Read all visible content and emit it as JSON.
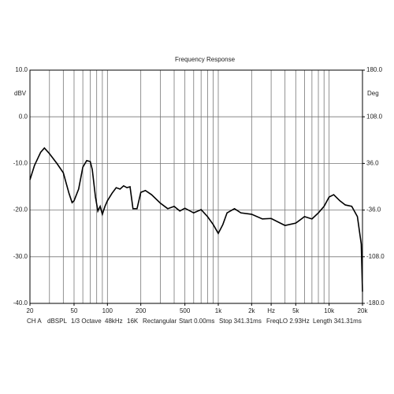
{
  "chart_data": {
    "type": "line",
    "title": "Frequency Response",
    "y_label": "dBV",
    "y2_label": "Deg",
    "log_x": true,
    "grid": true,
    "xlim": [
      20,
      20000
    ],
    "xticks": [
      20,
      50,
      100,
      200,
      500,
      {
        "value": 1000,
        "label": "1k"
      },
      {
        "value": 2000,
        "label": "2k"
      },
      {
        "value": 3000,
        "label": "Hz"
      },
      {
        "value": 5000,
        "label": "5k"
      },
      {
        "value": 10000,
        "label": "10k"
      },
      {
        "value": 20000,
        "label": "20k"
      }
    ],
    "x_gridlines": [
      30,
      40,
      50,
      60,
      70,
      80,
      90,
      100,
      200,
      300,
      400,
      500,
      600,
      700,
      800,
      900,
      1000,
      2000,
      3000,
      4000,
      5000,
      6000,
      7000,
      8000,
      9000,
      10000
    ],
    "ylim": [
      -40,
      10
    ],
    "yticks": [
      {
        "value": 10,
        "label": "10.0"
      },
      {
        "value": 0,
        "label": "0.0"
      },
      {
        "value": -10,
        "label": "-10.0"
      },
      {
        "value": -20,
        "label": "-20.0"
      },
      {
        "value": -30,
        "label": "-30.0"
      },
      {
        "value": -40,
        "label": "-40.0"
      }
    ],
    "y2lim": [
      -180,
      180
    ],
    "y2ticks": [
      {
        "value": 180,
        "label": "180.0"
      },
      {
        "value": 108,
        "label": "108.0"
      },
      {
        "value": 36,
        "label": "36.0"
      },
      {
        "value": -36,
        "label": "-36.0"
      },
      {
        "value": -108,
        "label": "-108.0"
      },
      {
        "value": -180,
        "label": "-180.0"
      }
    ],
    "x": [
      20,
      22,
      25,
      27,
      30,
      35,
      40,
      45,
      48,
      50,
      55,
      60,
      65,
      70,
      73,
      78,
      82,
      86,
      90,
      95,
      100,
      110,
      120,
      130,
      140,
      150,
      160,
      170,
      185,
      200,
      220,
      250,
      300,
      350,
      400,
      450,
      500,
      600,
      700,
      800,
      900,
      1000,
      1100,
      1200,
      1400,
      1600,
      2000,
      2500,
      3000,
      4000,
      5000,
      6000,
      7000,
      8000,
      9000,
      10000,
      11000,
      12500,
      14000,
      16000,
      18000,
      19500,
      20000
    ],
    "series": [
      {
        "color": "#000000",
        "values": [
          -13.5,
          -10.4,
          -7.6,
          -6.7,
          -7.9,
          -10,
          -12,
          -16.4,
          -18.4,
          -18,
          -15.5,
          -10.8,
          -9.4,
          -9.6,
          -11.3,
          -17.2,
          -20.2,
          -19.2,
          -20.9,
          -19.2,
          -18,
          -16.4,
          -15.2,
          -15.5,
          -14.8,
          -15.2,
          -15,
          -19.7,
          -19.7,
          -16.2,
          -15.8,
          -16.7,
          -18.5,
          -19.7,
          -19.2,
          -20.2,
          -19.6,
          -20.6,
          -19.9,
          -21.4,
          -23.1,
          -25,
          -23.1,
          -20.6,
          -19.7,
          -20.6,
          -20.9,
          -21.9,
          -21.8,
          -23.3,
          -22.8,
          -21.4,
          -21.9,
          -20.6,
          -19.2,
          -17.2,
          -16.7,
          -18,
          -18.9,
          -19.2,
          -21.4,
          -27.3,
          -37.5
        ]
      }
    ],
    "footer": [
      "CH A",
      "dBSPL",
      "1/3 Octave",
      "48kHz",
      "16K",
      "Rectangular",
      "Start 0.00ms",
      "Stop 341.31ms",
      "FreqLO 2.93Hz",
      "Length 341.31ms"
    ]
  }
}
